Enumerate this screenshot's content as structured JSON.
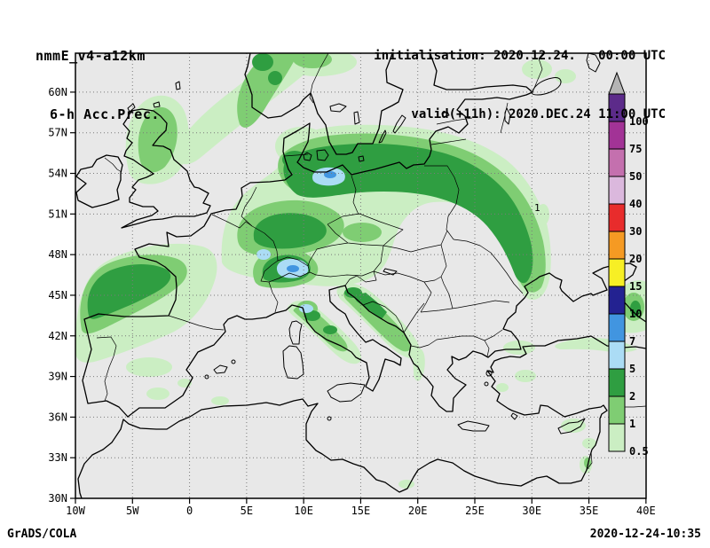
{
  "header": {
    "model": "nmmE_v4-a12km",
    "product": "6-h Acc.Prec.",
    "init_line": "initialisation: 2020.12.24.   00:00 UTC",
    "valid_line": "valid(+11h): 2020.DEC.24 11:00 UTC"
  },
  "footer": {
    "credit": "GrADS/COLA",
    "timestamp": "2020-12-24-10:35"
  },
  "map": {
    "x_ticks": [
      {
        "label": "10W",
        "lon": -10
      },
      {
        "label": "5W",
        "lon": -5
      },
      {
        "label": "0",
        "lon": 0
      },
      {
        "label": "5E",
        "lon": 5
      },
      {
        "label": "10E",
        "lon": 10
      },
      {
        "label": "15E",
        "lon": 15
      },
      {
        "label": "20E",
        "lon": 20
      },
      {
        "label": "25E",
        "lon": 25
      },
      {
        "label": "30E",
        "lon": 30
      },
      {
        "label": "35E",
        "lon": 35
      },
      {
        "label": "40E",
        "lon": 40
      }
    ],
    "y_ticks": [
      {
        "label": "30N",
        "lat": 30
      },
      {
        "label": "33N",
        "lat": 33
      },
      {
        "label": "36N",
        "lat": 36
      },
      {
        "label": "39N",
        "lat": 39
      },
      {
        "label": "42N",
        "lat": 42
      },
      {
        "label": "45N",
        "lat": 45
      },
      {
        "label": "48N",
        "lat": 48
      },
      {
        "label": "51N",
        "lat": 51
      },
      {
        "label": "54N",
        "lat": 54
      },
      {
        "label": "57N",
        "lat": 57
      },
      {
        "label": "60N",
        "lat": 60
      }
    ],
    "contour_annotation": "1"
  },
  "colorbar": {
    "arrow_color": "#b4b4b4",
    "boxes": [
      {
        "color": "#5c2b8a",
        "label": "100"
      },
      {
        "color": "#a23396",
        "label": "75"
      },
      {
        "color": "#c470ae",
        "label": "50"
      },
      {
        "color": "#dbb8dd",
        "label": "40"
      },
      {
        "color": "#e82c2c",
        "label": "30"
      },
      {
        "color": "#f59a23",
        "label": "20"
      },
      {
        "color": "#f7ef25",
        "label": "15"
      },
      {
        "color": "#232291",
        "label": "10"
      },
      {
        "color": "#4195e0",
        "label": "7"
      },
      {
        "color": "#abdcf5",
        "label": "5"
      },
      {
        "color": "#2f9e41",
        "label": "2"
      },
      {
        "color": "#7fcd73",
        "label": "1"
      },
      {
        "color": "#cbeec3",
        "label": "0.5"
      }
    ]
  },
  "palette": {
    "map_bg": "#e8e8e8",
    "p05": "#cbeec3",
    "p1": "#7fcd73",
    "p2": "#2f9e41",
    "p5": "#abdcf5",
    "p7": "#4195e0"
  }
}
